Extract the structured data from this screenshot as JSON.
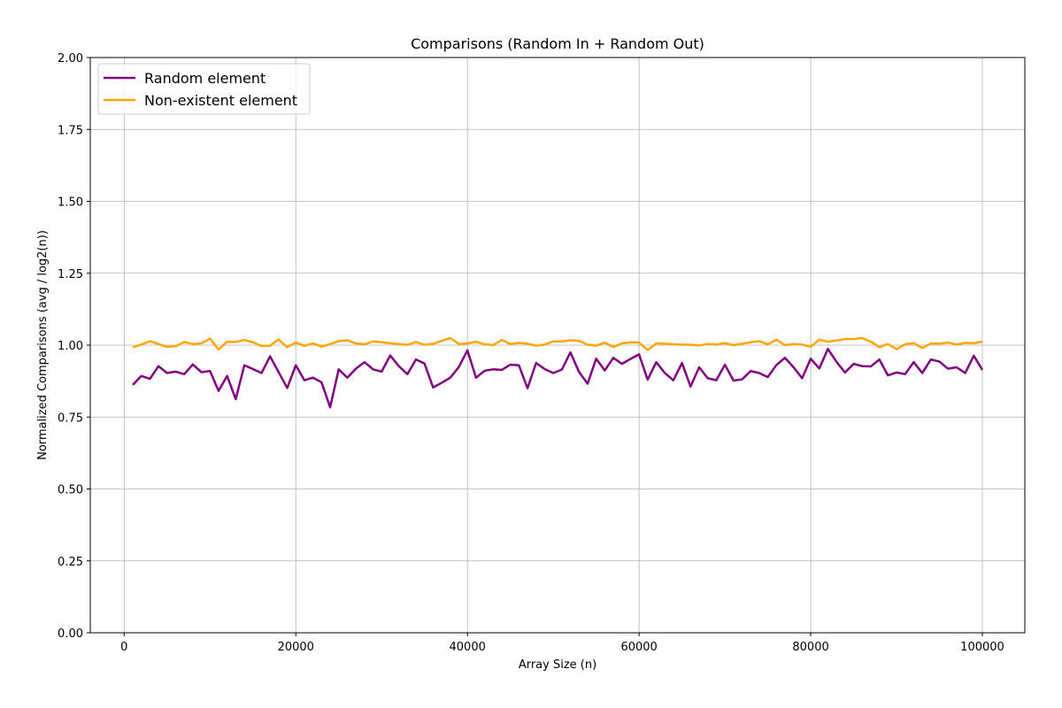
{
  "chart_data": {
    "type": "line",
    "title": "Comparisons (Random In + Random Out)",
    "xlabel": "Array Size (n)",
    "ylabel": "Normalized Comparisons (avg / log2(n))",
    "xlim": [
      -3950,
      104950
    ],
    "ylim": [
      0,
      2
    ],
    "xticks": [
      0,
      20000,
      40000,
      60000,
      80000,
      100000
    ],
    "yticks": [
      0.0,
      0.25,
      0.5,
      0.75,
      1.0,
      1.25,
      1.5,
      1.75,
      2.0
    ],
    "ytick_labels": [
      "0.00",
      "0.25",
      "0.50",
      "0.75",
      "1.00",
      "1.25",
      "1.50",
      "1.75",
      "2.00"
    ],
    "grid": true,
    "legend_position": "upper-left",
    "x": [
      1000,
      2000,
      3000,
      4000,
      5000,
      6000,
      7000,
      8000,
      9000,
      10000,
      11000,
      12000,
      13000,
      14000,
      15000,
      16000,
      17000,
      18000,
      19000,
      20000,
      21000,
      22000,
      23000,
      24000,
      25000,
      26000,
      27000,
      28000,
      29000,
      30000,
      31000,
      32000,
      33000,
      34000,
      35000,
      36000,
      37000,
      38000,
      39000,
      40000,
      41000,
      42000,
      43000,
      44000,
      45000,
      46000,
      47000,
      48000,
      49000,
      50000,
      51000,
      52000,
      53000,
      54000,
      55000,
      56000,
      57000,
      58000,
      59000,
      60000,
      61000,
      62000,
      63000,
      64000,
      65000,
      66000,
      67000,
      68000,
      69000,
      70000,
      71000,
      72000,
      73000,
      74000,
      75000,
      76000,
      77000,
      78000,
      79000,
      80000,
      81000,
      82000,
      83000,
      84000,
      85000,
      86000,
      87000,
      88000,
      89000,
      90000,
      91000,
      92000,
      93000,
      94000,
      95000,
      96000,
      97000,
      98000,
      99000,
      100000
    ],
    "series": [
      {
        "name": "Random element",
        "color": "#800080",
        "values": [
          0.862,
          0.893,
          0.883,
          0.927,
          0.903,
          0.908,
          0.899,
          0.933,
          0.906,
          0.91,
          0.841,
          0.893,
          0.812,
          0.93,
          0.917,
          0.903,
          0.961,
          0.906,
          0.851,
          0.93,
          0.878,
          0.887,
          0.871,
          0.784,
          0.916,
          0.887,
          0.918,
          0.941,
          0.916,
          0.908,
          0.964,
          0.927,
          0.899,
          0.95,
          0.936,
          0.853,
          0.869,
          0.887,
          0.924,
          0.982,
          0.887,
          0.911,
          0.916,
          0.914,
          0.932,
          0.93,
          0.85,
          0.938,
          0.917,
          0.903,
          0.915,
          0.975,
          0.907,
          0.866,
          0.953,
          0.912,
          0.956,
          0.935,
          0.952,
          0.968,
          0.88,
          0.941,
          0.903,
          0.878,
          0.938,
          0.856,
          0.923,
          0.885,
          0.878,
          0.932,
          0.877,
          0.881,
          0.91,
          0.903,
          0.889,
          0.931,
          0.956,
          0.923,
          0.885,
          0.953,
          0.919,
          0.987,
          0.942,
          0.905,
          0.935,
          0.927,
          0.926,
          0.95,
          0.895,
          0.905,
          0.899,
          0.941,
          0.903,
          0.95,
          0.943,
          0.918,
          0.923,
          0.903,
          0.963,
          0.914
        ]
      },
      {
        "name": "Non-existent element",
        "color": "#ffa500",
        "values": [
          0.993,
          1.002,
          1.014,
          1.004,
          0.994,
          0.996,
          1.011,
          1.004,
          1.006,
          1.023,
          0.985,
          1.012,
          1.011,
          1.018,
          1.01,
          0.997,
          0.998,
          1.02,
          0.993,
          1.009,
          0.998,
          1.006,
          0.995,
          1.004,
          1.014,
          1.017,
          1.006,
          1.003,
          1.013,
          1.01,
          1.007,
          1.004,
          1.001,
          1.011,
          1.001,
          1.005,
          1.015,
          1.025,
          1.004,
          1.006,
          1.012,
          1.003,
          1.0,
          1.018,
          1.004,
          1.008,
          1.005,
          0.998,
          1.002,
          1.013,
          1.013,
          1.017,
          1.015,
          1.002,
          0.998,
          1.009,
          0.994,
          1.006,
          1.01,
          1.009,
          0.983,
          1.006,
          1.005,
          1.003,
          1.002,
          1.001,
          0.999,
          1.004,
          1.002,
          1.007,
          1.0,
          1.005,
          1.01,
          1.014,
          1.003,
          1.019,
          1.0,
          1.004,
          1.002,
          0.995,
          1.019,
          1.012,
          1.016,
          1.021,
          1.021,
          1.025,
          1.012,
          0.993,
          1.004,
          0.986,
          1.003,
          1.007,
          0.99,
          1.006,
          1.005,
          1.009,
          1.002,
          1.008,
          1.007,
          1.012
        ]
      }
    ]
  }
}
